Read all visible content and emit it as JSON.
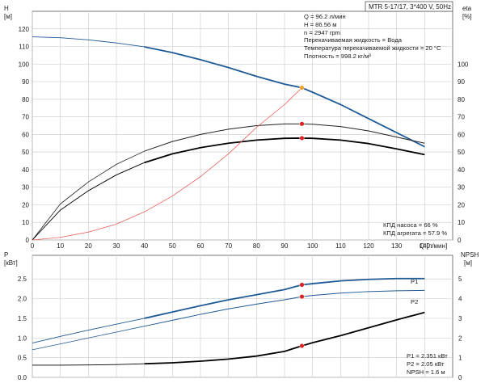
{
  "chart_data": [
    {
      "type": "line",
      "title": "MTR 5-17/17, 3*400 V, 50Hz",
      "xlabel": "Q [л/мин]",
      "ylabel": "H [м]",
      "y2label": "eta [%]",
      "xlim": [
        0,
        150
      ],
      "ylim": [
        0,
        130
      ],
      "y2lim": [
        0,
        130
      ],
      "x_ticks": [
        0,
        10,
        20,
        30,
        40,
        50,
        60,
        70,
        80,
        90,
        100,
        110,
        120,
        130,
        140
      ],
      "y_ticks": [
        0,
        10,
        20,
        30,
        40,
        50,
        60,
        70,
        80,
        90,
        100,
        110,
        120
      ],
      "y2_ticks": [
        0,
        10,
        20,
        30,
        40,
        50,
        60,
        70,
        80,
        90,
        100
      ],
      "grid": true,
      "series": [
        {
          "id": "H",
          "axis": "left",
          "color": "#1f5a96",
          "x": [
            0,
            10,
            20,
            30,
            40,
            50,
            60,
            70,
            80,
            90,
            96.2,
            100,
            110,
            120,
            130,
            140
          ],
          "y": [
            115.5,
            115,
            113.8,
            112,
            109.8,
            106.5,
            102.5,
            98,
            93,
            88.6,
            86.56,
            84,
            77,
            69,
            61,
            53
          ]
        },
        {
          "id": "eta_pump",
          "axis": "right",
          "color": "#222222",
          "x": [
            0,
            10,
            20,
            30,
            40,
            50,
            60,
            70,
            80,
            90,
            96.2,
            100,
            110,
            120,
            130,
            140
          ],
          "y": [
            0,
            20.5,
            33,
            43,
            50.5,
            56,
            60,
            63,
            65,
            66,
            66,
            65.8,
            64.5,
            62,
            58.5,
            55
          ]
        },
        {
          "id": "eta_unit",
          "axis": "right",
          "color": "#000000",
          "x": [
            0,
            10,
            20,
            30,
            40,
            50,
            60,
            70,
            80,
            90,
            96.2,
            100,
            110,
            120,
            130,
            140
          ],
          "y": [
            0,
            17,
            28,
            37,
            44,
            49,
            52.5,
            55,
            56.8,
            57.8,
            57.9,
            57.8,
            56.8,
            54.8,
            51.8,
            48.5
          ]
        },
        {
          "id": "system",
          "axis": "left",
          "color": "#e8625a",
          "x": [
            0,
            10,
            20,
            30,
            40,
            50,
            60,
            70,
            80,
            90,
            96.2
          ],
          "y": [
            0,
            1.5,
            4.5,
            9,
            16,
            25,
            36,
            49,
            64,
            77,
            86.56
          ]
        }
      ],
      "markers": [
        {
          "series": "H",
          "x": 96.2,
          "y": 86.56,
          "color": "#f0a020"
        },
        {
          "series": "eta_pump",
          "x": 96.2,
          "y": 66,
          "color": "#e02020"
        },
        {
          "series": "eta_unit",
          "x": 96.2,
          "y": 57.9,
          "color": "#e02020"
        }
      ],
      "annotations": {
        "duty_point": [
          "Q = 96.2 л/мин",
          "H = 86.56 м",
          "n = 2947 rpm",
          "Перекачиваемая жидкость = Вода",
          "Температура перекачиваемой жидкости = 20 °C",
          "Плотность = 998.2 кг/м³"
        ],
        "efficiency": [
          "КПД насоса = 66 %",
          "КПД агрегата = 57.9 %"
        ]
      }
    },
    {
      "type": "line",
      "xlabel": "Q [л/мин]",
      "ylabel": "P [кВт]",
      "y2label": "NPSH [м]",
      "xlim": [
        0,
        150
      ],
      "ylim": [
        0,
        3.1
      ],
      "y2lim": [
        0,
        6.2
      ],
      "y_ticks": [
        "0.0",
        "0.5",
        "1.0",
        "1.5",
        "2.0",
        "2.5"
      ],
      "y2_ticks": [
        0,
        1,
        2,
        3,
        4,
        5
      ],
      "grid": true,
      "series": [
        {
          "id": "P1",
          "name": "P1",
          "axis": "left",
          "color": "#1f5a96",
          "x": [
            0,
            10,
            20,
            30,
            40,
            50,
            60,
            70,
            80,
            90,
            96.2,
            100,
            110,
            120,
            130,
            140
          ],
          "y": [
            0.87,
            1.04,
            1.2,
            1.35,
            1.5,
            1.66,
            1.82,
            1.97,
            2.1,
            2.23,
            2.351,
            2.38,
            2.45,
            2.49,
            2.51,
            2.51
          ]
        },
        {
          "id": "P2",
          "name": "P2",
          "axis": "left",
          "color": "#1f5a96",
          "x": [
            0,
            10,
            20,
            30,
            40,
            50,
            60,
            70,
            80,
            90,
            96.2,
            100,
            110,
            120,
            130,
            140
          ],
          "y": [
            0.7,
            0.85,
            1.0,
            1.15,
            1.3,
            1.45,
            1.6,
            1.74,
            1.86,
            1.97,
            2.05,
            2.08,
            2.14,
            2.18,
            2.2,
            2.21
          ]
        },
        {
          "id": "NPSH",
          "axis": "right",
          "color": "#000000",
          "x": [
            0,
            10,
            20,
            30,
            40,
            50,
            60,
            70,
            80,
            90,
            96.2,
            100,
            110,
            120,
            130,
            140
          ],
          "y": [
            0.62,
            0.62,
            0.63,
            0.65,
            0.69,
            0.74,
            0.82,
            0.93,
            1.08,
            1.32,
            1.6,
            1.76,
            2.12,
            2.52,
            2.92,
            3.3
          ]
        }
      ],
      "markers": [
        {
          "series": "P1",
          "x": 96.2,
          "y": 2.351,
          "color": "#e02020"
        },
        {
          "series": "P2",
          "x": 96.2,
          "y": 2.05,
          "color": "#e02020"
        },
        {
          "series": "NPSH",
          "x": 96.2,
          "y": 1.6,
          "color": "#e02020"
        }
      ],
      "annotations": {
        "power": [
          "P1 = 2.351 кВт",
          "P2 = 2.05 кВт",
          "NPSH = 1.6 м"
        ]
      }
    }
  ],
  "labels": {
    "title": "MTR 5-17/17, 3*400 V, 50Hz",
    "top_left_axis": [
      "H",
      "[м]"
    ],
    "top_right_axis": [
      "eta",
      "[%]"
    ],
    "bottom_left_axis": [
      "P",
      "[кВт]"
    ],
    "bottom_right_axis": [
      "NPSH",
      "[м]"
    ],
    "x_axis": "Q [л/мин]",
    "duty_lines": [
      "Q = 96.2 л/мин",
      "H = 86.56 м",
      "n = 2947 rpm",
      "Перекачиваемая жидкость = Вода",
      "Температура перекачиваемой жидкости = 20 °C",
      "Плотность = 998.2 кг/м³"
    ],
    "eff_lines": [
      "КПД насоса = 66 %",
      "КПД агрегата = 57.9 %"
    ],
    "power_lines": [
      "P1 = 2.351 кВт",
      "P2 = 2.05 кВт",
      "NPSH = 1.6 м"
    ],
    "p1_label": "P1",
    "p2_label": "P2"
  }
}
